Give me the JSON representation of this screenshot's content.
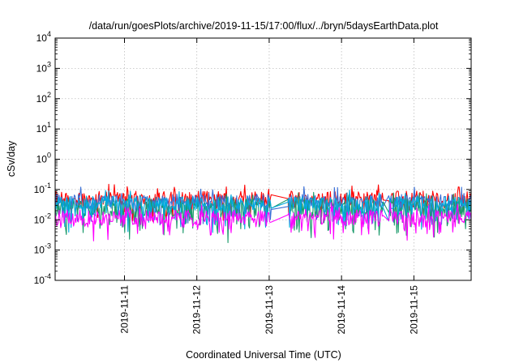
{
  "chart_data": {
    "type": "line",
    "title": "/data/run/goesPlots/archive/2019-11-15/17:00/flux/../bryn/5daysEarthData.plot",
    "xlabel": "Coordinated Universal Time (UTC)",
    "ylabel": "cSv/day",
    "yscale": "log",
    "ylim": [
      0.0001,
      10000
    ],
    "yticks": [
      {
        "base": "10",
        "exp": "-4"
      },
      {
        "base": "10",
        "exp": "-3"
      },
      {
        "base": "10",
        "exp": "-2"
      },
      {
        "base": "10",
        "exp": "-1"
      },
      {
        "base": "10",
        "exp": "0"
      },
      {
        "base": "10",
        "exp": "1"
      },
      {
        "base": "10",
        "exp": "2"
      },
      {
        "base": "10",
        "exp": "3"
      },
      {
        "base": "10",
        "exp": "4"
      }
    ],
    "xlim": [
      "2019-11-10T01:00",
      "2019-11-15T19:00"
    ],
    "xticks": [
      "2019-11-11",
      "2019-11-12",
      "2019-11-13",
      "2019-11-14",
      "2019-11-15"
    ],
    "grid": true,
    "gap": [
      "2019-11-13T00:40",
      "2019-11-13T06:00"
    ],
    "gap2": [
      "2019-11-14T14:00",
      "2019-11-14T15:30"
    ],
    "series": [
      {
        "color": "#ff0000",
        "base": 0.05,
        "spread": 0.5,
        "dip": 0.6
      },
      {
        "color": "#3a6fd6",
        "base": 0.042,
        "spread": 0.45,
        "dip": 0.7
      },
      {
        "color": "#1a9a6a",
        "base": 0.025,
        "spread": 0.6,
        "dip": 0.9
      },
      {
        "color": "#00aadd",
        "base": 0.035,
        "spread": 0.45,
        "dip": 0.8
      },
      {
        "color": "#ff00ff",
        "base": 0.012,
        "spread": 0.5,
        "dip": 0.55
      }
    ]
  }
}
